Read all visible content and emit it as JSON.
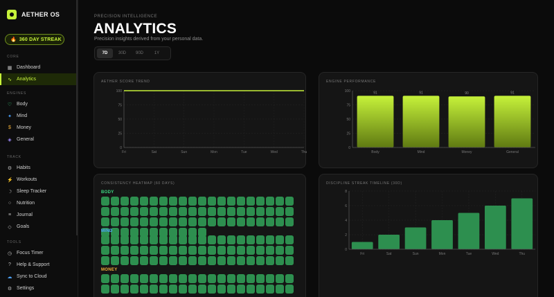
{
  "brand": {
    "name": "AETHER OS"
  },
  "streak": {
    "label": "360 DAY STREAK",
    "icon": "fire-icon"
  },
  "sidebar": {
    "sections": [
      {
        "title": "CORE",
        "items": [
          {
            "label": "Dashboard",
            "icon": "grid-icon",
            "glyph": "▦",
            "color": "#bbbbbb",
            "active": false
          },
          {
            "label": "Analytics",
            "icon": "trend-icon",
            "glyph": "∿",
            "color": "#c6f23a",
            "active": true
          }
        ]
      },
      {
        "title": "ENGINES",
        "items": [
          {
            "label": "Body",
            "icon": "heart-icon",
            "glyph": "♡",
            "color": "#3ddc84",
            "active": false
          },
          {
            "label": "Mind",
            "icon": "sparkle-icon",
            "glyph": "✦",
            "color": "#4da3ff",
            "active": false
          },
          {
            "label": "Money",
            "icon": "dollar-icon",
            "glyph": "$",
            "color": "#f5b13a",
            "active": false
          },
          {
            "label": "General",
            "icon": "diamond-icon",
            "glyph": "◈",
            "color": "#a08bff",
            "active": false
          }
        ]
      },
      {
        "title": "TRACK",
        "items": [
          {
            "label": "Habits",
            "icon": "gear-icon",
            "glyph": "⚙",
            "color": "#bbbbbb",
            "active": false
          },
          {
            "label": "Workouts",
            "icon": "bolt-icon",
            "glyph": "⚡",
            "color": "#ff6b3a",
            "active": false
          },
          {
            "label": "Sleep Tracker",
            "icon": "moon-icon",
            "glyph": "☽",
            "color": "#bbbbbb",
            "active": false
          },
          {
            "label": "Nutrition",
            "icon": "circle-icon",
            "glyph": "○",
            "color": "#bbbbbb",
            "active": false
          },
          {
            "label": "Journal",
            "icon": "lines-icon",
            "glyph": "≡",
            "color": "#bbbbbb",
            "active": false
          },
          {
            "label": "Goals",
            "icon": "target-icon",
            "glyph": "◇",
            "color": "#bbbbbb",
            "active": false
          }
        ]
      },
      {
        "title": "TOOLS",
        "items": [
          {
            "label": "Focus Timer",
            "icon": "timer-icon",
            "glyph": "◷",
            "color": "#bbbbbb",
            "active": false
          },
          {
            "label": "Help & Support",
            "icon": "help-icon",
            "glyph": "?",
            "color": "#bbbbbb",
            "active": false
          },
          {
            "label": "Sync to Cloud",
            "icon": "cloud-icon",
            "glyph": "☁",
            "color": "#4da3ff",
            "active": false
          },
          {
            "label": "Settings",
            "icon": "settings-icon",
            "glyph": "⚙",
            "color": "#bbbbbb",
            "active": false
          }
        ]
      }
    ]
  },
  "header": {
    "eyebrow": "PRECISION INTELLIGENCE",
    "title": "ANALYTICS",
    "subtitle": "Precision insights derived from your personal data."
  },
  "range": {
    "options": [
      "7D",
      "30D",
      "90D",
      "1Y"
    ],
    "selected": "7D"
  },
  "colors": {
    "accent": "#c6f23a",
    "green": "#2d8f4f",
    "body": "#3ddc84",
    "mind": "#4da3ff",
    "money": "#f5b13a"
  },
  "chart_data": [
    {
      "id": "score-trend",
      "title": "AETHER SCORE TREND",
      "type": "line",
      "x": [
        "Fri",
        "Sat",
        "Sun",
        "Mon",
        "Tue",
        "Wed",
        "Thu"
      ],
      "yticks": [
        0,
        25,
        50,
        75,
        100
      ],
      "ylim": [
        0,
        100
      ],
      "series": [
        {
          "values": [
            100,
            100,
            100,
            100,
            100,
            100,
            100
          ]
        }
      ]
    },
    {
      "id": "engine-performance",
      "title": "ENGINE PERFORMANCE",
      "type": "bar",
      "categories": [
        "Body",
        "Mind",
        "Money",
        "General"
      ],
      "values": [
        91,
        91,
        90,
        91
      ],
      "labels": [
        "91",
        "91",
        "90",
        "91"
      ],
      "yticks": [
        0,
        25,
        50,
        75,
        100
      ],
      "ylim": [
        0,
        100
      ]
    },
    {
      "id": "consistency-heatmap",
      "title": "CONSISTENCY HEATMAP (60 DAYS)",
      "type": "heatmap",
      "groups": [
        {
          "name": "BODY",
          "color": "#3ddc84",
          "rows": [
            20,
            20,
            20,
            20
          ],
          "shown": [
            20,
            20,
            20,
            11
          ]
        },
        {
          "name": "MIND",
          "color": "#4da3ff",
          "rows": [
            20,
            20,
            20
          ],
          "shown": [
            20,
            20,
            20
          ]
        },
        {
          "name": "MONEY",
          "color": "#f5b13a",
          "rows": [
            20,
            20
          ],
          "shown": [
            20,
            20
          ]
        }
      ]
    },
    {
      "id": "streak-timeline",
      "title": "DISCIPLINE STREAK TIMELINE (30D)",
      "type": "bar",
      "categories": [
        "Fri",
        "Sat",
        "Sun",
        "Mon",
        "Tue",
        "Wed",
        "Thu"
      ],
      "values": [
        1,
        2,
        3,
        4,
        5,
        6,
        7
      ],
      "yticks": [
        0,
        2,
        4,
        6,
        8
      ],
      "ylim": [
        0,
        8
      ]
    }
  ]
}
